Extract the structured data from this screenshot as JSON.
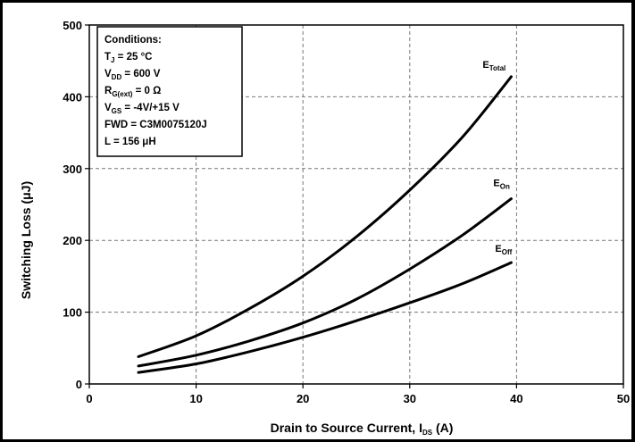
{
  "chart_data": {
    "type": "line",
    "title": "",
    "xlabel": "Drain to Source Current, I",
    "xlabel_sub": "DS",
    "xlabel_suffix": " (A)",
    "ylabel": "Switching Loss (μJ)",
    "xlim": [
      0,
      50
    ],
    "ylim": [
      0,
      500
    ],
    "x_ticks": [
      0,
      10,
      20,
      30,
      40,
      50
    ],
    "y_ticks": [
      0,
      100,
      200,
      300,
      400,
      500
    ],
    "grid": true,
    "legend": "inline-labels",
    "series": [
      {
        "name": "E",
        "sub": "Total",
        "x": [
          4.6,
          10,
          15,
          20,
          25,
          30,
          35,
          39.5
        ],
        "y": [
          38,
          67,
          105,
          150,
          205,
          270,
          345,
          428
        ]
      },
      {
        "name": "E",
        "sub": "On",
        "x": [
          4.6,
          10,
          15,
          20,
          25,
          30,
          35,
          39.5
        ],
        "y": [
          25,
          40,
          60,
          85,
          118,
          160,
          208,
          258
        ]
      },
      {
        "name": "E",
        "sub": "Off",
        "x": [
          4.6,
          10,
          15,
          20,
          25,
          30,
          35,
          39.5
        ],
        "y": [
          16,
          28,
          45,
          65,
          88,
          113,
          140,
          169
        ]
      }
    ],
    "conditions": [
      {
        "text": "Conditions:"
      },
      {
        "text": "T",
        "sub": "J",
        "suffix": " = 25 °C"
      },
      {
        "text": "V",
        "sub": "DD",
        "suffix": " = 600 V"
      },
      {
        "text": "R",
        "sub": "G(ext)",
        "suffix": " = 0 Ω"
      },
      {
        "text": "V",
        "sub": "GS",
        "suffix": " = -4V/+15 V"
      },
      {
        "text": "FWD = C3M0075120J"
      },
      {
        "text": "L = 156 μH"
      }
    ]
  }
}
